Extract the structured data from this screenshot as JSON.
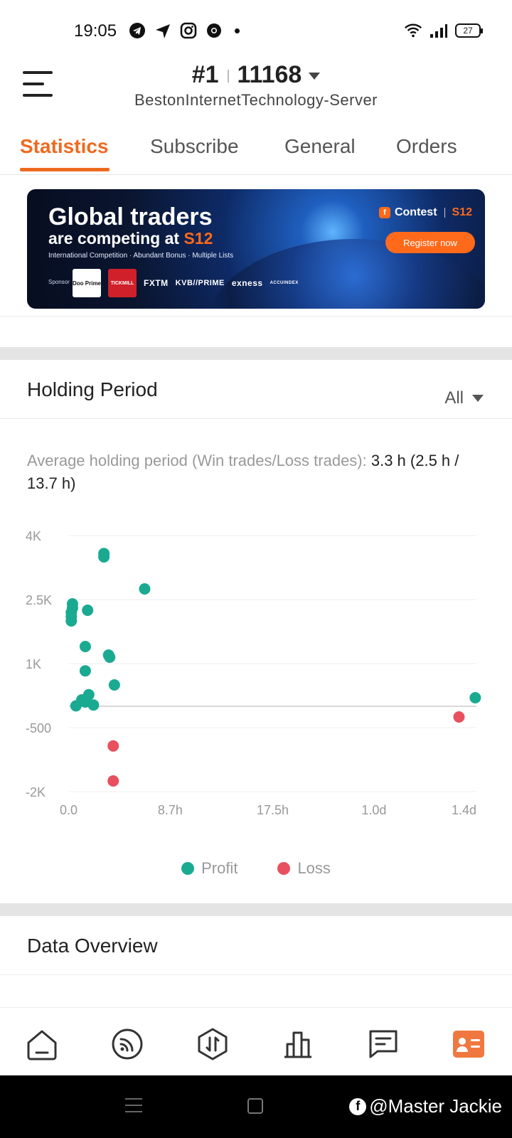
{
  "status_bar": {
    "time": "19:05",
    "battery": "27",
    "icons_left": [
      "telegram-icon",
      "send-icon",
      "instagram-icon",
      "chrome-icon"
    ],
    "icons_right": [
      "wifi-icon",
      "signal-icon",
      "battery-icon"
    ]
  },
  "header": {
    "rank": "#1",
    "account": "11168",
    "server": "BestonInternetTechnology-Server"
  },
  "tabs": [
    {
      "label": "Statistics",
      "active": true
    },
    {
      "label": "Subscribe",
      "active": false
    },
    {
      "label": "General",
      "active": false
    },
    {
      "label": "Orders",
      "active": false
    }
  ],
  "banner": {
    "title_line1": "Global traders",
    "title_line2_prefix": "are competing at ",
    "title_line2_accent": "S12",
    "description": "International Competition · Abundant Bonus · Multiple Lists",
    "sponsor_label": "Sponsor",
    "sponsors": [
      "Doo Prime",
      "TICKMILL",
      "FXTM",
      "KVB//PRIME",
      "exness",
      "ACCUINDEX"
    ],
    "contest_label": "Contest",
    "contest_code": "S12",
    "register_label": "Register now"
  },
  "holding_period": {
    "title": "Holding Period",
    "filter_value": "All",
    "avg_label": "Average holding period (Win trades/Loss trades): ",
    "avg_value": "3.3 h (2.5 h / 13.7 h)"
  },
  "chart_data": {
    "type": "scatter",
    "xlabel": "",
    "ylabel": "",
    "x_unit": "hours",
    "x_ticks": [
      "0.0",
      "8.7h",
      "17.5h",
      "1.0d",
      "1.4d"
    ],
    "x_tick_hours": [
      0,
      8.7,
      17.5,
      26.2,
      35
    ],
    "y_ticks": [
      "4K",
      "2.5K",
      "1K",
      "-500",
      "-2K"
    ],
    "y_tick_values": [
      4000,
      2500,
      1000,
      -500,
      -2000
    ],
    "xlim": [
      0,
      35
    ],
    "ylim": [
      -2000,
      4000
    ],
    "grid": true,
    "legend_position": "bottom",
    "series": [
      {
        "name": "Profit",
        "color": "#1aaa92",
        "points": [
          {
            "x": 3.0,
            "y": 3580
          },
          {
            "x": 3.0,
            "y": 3500
          },
          {
            "x": 6.5,
            "y": 2750
          },
          {
            "x": 0.3,
            "y": 2400
          },
          {
            "x": 0.3,
            "y": 2300
          },
          {
            "x": 0.2,
            "y": 2200
          },
          {
            "x": 0.2,
            "y": 2100
          },
          {
            "x": 0.2,
            "y": 2000
          },
          {
            "x": 1.6,
            "y": 2250
          },
          {
            "x": 1.4,
            "y": 1400
          },
          {
            "x": 3.4,
            "y": 1200
          },
          {
            "x": 3.5,
            "y": 1150
          },
          {
            "x": 1.4,
            "y": 830
          },
          {
            "x": 3.9,
            "y": 500
          },
          {
            "x": 1.7,
            "y": 270
          },
          {
            "x": 1.1,
            "y": 150
          },
          {
            "x": 1.4,
            "y": 100
          },
          {
            "x": 2.1,
            "y": 30
          },
          {
            "x": 0.6,
            "y": 10
          },
          {
            "x": 34.9,
            "y": 200
          }
        ]
      },
      {
        "name": "Loss",
        "color": "#e8505f",
        "points": [
          {
            "x": 3.8,
            "y": -930
          },
          {
            "x": 3.8,
            "y": -1750
          },
          {
            "x": 33.5,
            "y": -250
          }
        ]
      }
    ]
  },
  "data_overview": {
    "title": "Data Overview"
  },
  "bottom_nav": {
    "items": [
      "home-icon",
      "signals-icon",
      "trade-icon",
      "market-icon",
      "message-icon",
      "profile-icon"
    ],
    "active_color": "#f07840"
  },
  "watermark": {
    "text": "@Master Jackie"
  }
}
